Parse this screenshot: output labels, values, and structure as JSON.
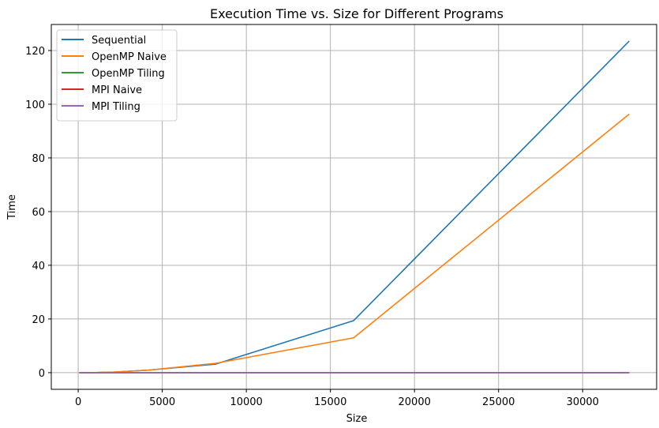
{
  "chart_data": {
    "type": "line",
    "title": "Execution Time vs. Size for Different Programs",
    "xlabel": "Size",
    "ylabel": "Time",
    "xlim": [
      -1600,
      34400
    ],
    "ylim": [
      -6.2,
      129.7
    ],
    "xticks": [
      0,
      5000,
      10000,
      15000,
      20000,
      25000,
      30000
    ],
    "yticks": [
      0,
      20,
      40,
      60,
      80,
      100,
      120
    ],
    "grid": true,
    "legend_position": "top-left",
    "x": [
      64,
      128,
      256,
      512,
      1024,
      2048,
      4096,
      8192,
      16384,
      32768
    ],
    "series": [
      {
        "name": "Sequential",
        "color": "#1f77b4",
        "values": [
          0.0,
          0.0,
          0.0,
          0.01,
          0.05,
          0.2,
          0.9,
          3.2,
          19.4,
          123.5
        ]
      },
      {
        "name": "OpenMP Naive",
        "color": "#ff7f0e",
        "values": [
          0.0,
          0.0,
          0.0,
          0.01,
          0.05,
          0.2,
          0.9,
          3.5,
          13.0,
          96.3
        ]
      },
      {
        "name": "OpenMP Tiling",
        "color": "#2ca02c",
        "values": [
          0.0,
          0.0,
          0.0,
          0.0,
          0.0,
          0.0,
          0.0,
          0.0,
          0.0,
          0.0
        ]
      },
      {
        "name": "MPI Naive",
        "color": "#d62728",
        "values": [
          0.0,
          0.0,
          0.0,
          0.0,
          0.0,
          0.0,
          0.0,
          0.0,
          0.0,
          0.0
        ]
      },
      {
        "name": "MPI Tiling",
        "color": "#9467bd",
        "values": [
          0.0,
          0.0,
          0.0,
          0.0,
          0.0,
          0.0,
          0.0,
          0.0,
          0.0,
          0.0
        ]
      }
    ]
  }
}
